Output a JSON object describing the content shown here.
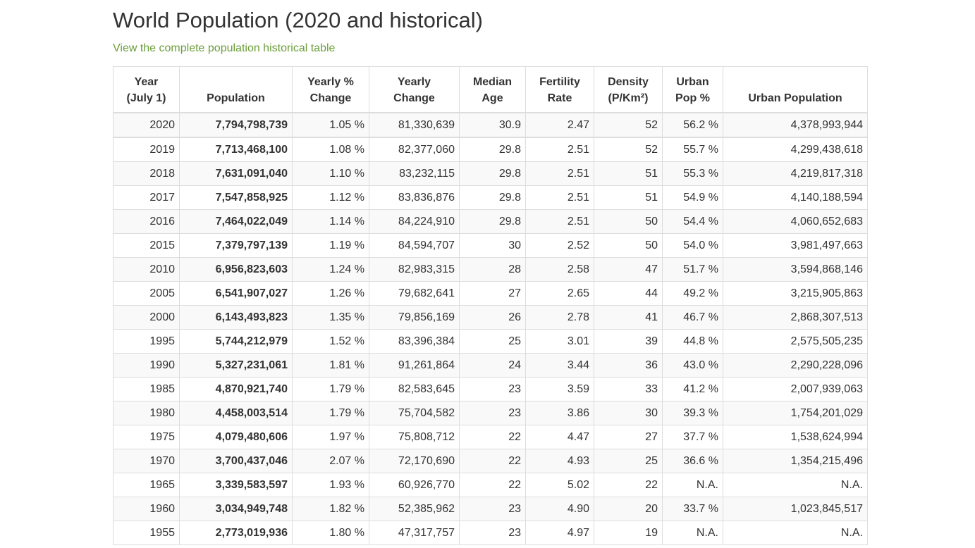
{
  "title": "World Population (2020 and historical)",
  "historical_link": "View the complete population historical table",
  "table": {
    "headers": [
      [
        "Year",
        "(July 1)"
      ],
      [
        "",
        "Population"
      ],
      [
        "Yearly %",
        "Change"
      ],
      [
        "Yearly",
        "Change"
      ],
      [
        "Median",
        "Age"
      ],
      [
        "Fertility",
        "Rate"
      ],
      [
        "Density",
        "(P/Km²)"
      ],
      [
        "Urban",
        "Pop %"
      ],
      [
        "",
        "Urban Population"
      ]
    ],
    "rows": [
      [
        "2020",
        "7,794,798,739",
        "1.05 %",
        "81,330,639",
        "30.9",
        "2.47",
        "52",
        "56.2 %",
        "4,378,993,944"
      ],
      [
        "2019",
        "7,713,468,100",
        "1.08 %",
        "82,377,060",
        "29.8",
        "2.51",
        "52",
        "55.7 %",
        "4,299,438,618"
      ],
      [
        "2018",
        "7,631,091,040",
        "1.10 %",
        "83,232,115",
        "29.8",
        "2.51",
        "51",
        "55.3 %",
        "4,219,817,318"
      ],
      [
        "2017",
        "7,547,858,925",
        "1.12 %",
        "83,836,876",
        "29.8",
        "2.51",
        "51",
        "54.9 %",
        "4,140,188,594"
      ],
      [
        "2016",
        "7,464,022,049",
        "1.14 %",
        "84,224,910",
        "29.8",
        "2.51",
        "50",
        "54.4 %",
        "4,060,652,683"
      ],
      [
        "2015",
        "7,379,797,139",
        "1.19 %",
        "84,594,707",
        "30",
        "2.52",
        "50",
        "54.0 %",
        "3,981,497,663"
      ],
      [
        "2010",
        "6,956,823,603",
        "1.24 %",
        "82,983,315",
        "28",
        "2.58",
        "47",
        "51.7 %",
        "3,594,868,146"
      ],
      [
        "2005",
        "6,541,907,027",
        "1.26 %",
        "79,682,641",
        "27",
        "2.65",
        "44",
        "49.2 %",
        "3,215,905,863"
      ],
      [
        "2000",
        "6,143,493,823",
        "1.35 %",
        "79,856,169",
        "26",
        "2.78",
        "41",
        "46.7 %",
        "2,868,307,513"
      ],
      [
        "1995",
        "5,744,212,979",
        "1.52 %",
        "83,396,384",
        "25",
        "3.01",
        "39",
        "44.8 %",
        "2,575,505,235"
      ],
      [
        "1990",
        "5,327,231,061",
        "1.81 %",
        "91,261,864",
        "24",
        "3.44",
        "36",
        "43.0 %",
        "2,290,228,096"
      ],
      [
        "1985",
        "4,870,921,740",
        "1.79 %",
        "82,583,645",
        "23",
        "3.59",
        "33",
        "41.2 %",
        "2,007,939,063"
      ],
      [
        "1980",
        "4,458,003,514",
        "1.79 %",
        "75,704,582",
        "23",
        "3.86",
        "30",
        "39.3 %",
        "1,754,201,029"
      ],
      [
        "1975",
        "4,079,480,606",
        "1.97 %",
        "75,808,712",
        "22",
        "4.47",
        "27",
        "37.7 %",
        "1,538,624,994"
      ],
      [
        "1970",
        "3,700,437,046",
        "2.07 %",
        "72,170,690",
        "22",
        "4.93",
        "25",
        "36.6 %",
        "1,354,215,496"
      ],
      [
        "1965",
        "3,339,583,597",
        "1.93 %",
        "60,926,770",
        "22",
        "5.02",
        "22",
        "N.A.",
        "N.A."
      ],
      [
        "1960",
        "3,034,949,748",
        "1.82 %",
        "52,385,962",
        "23",
        "4.90",
        "20",
        "33.7 %",
        "1,023,845,517"
      ],
      [
        "1955",
        "2,773,019,936",
        "1.80 %",
        "47,317,757",
        "23",
        "4.97",
        "19",
        "N.A.",
        "N.A."
      ]
    ]
  },
  "colors": {
    "link": "#6b9e3a",
    "text": "#333333",
    "border": "#dddddd",
    "stripe": "#f9f9f9"
  }
}
